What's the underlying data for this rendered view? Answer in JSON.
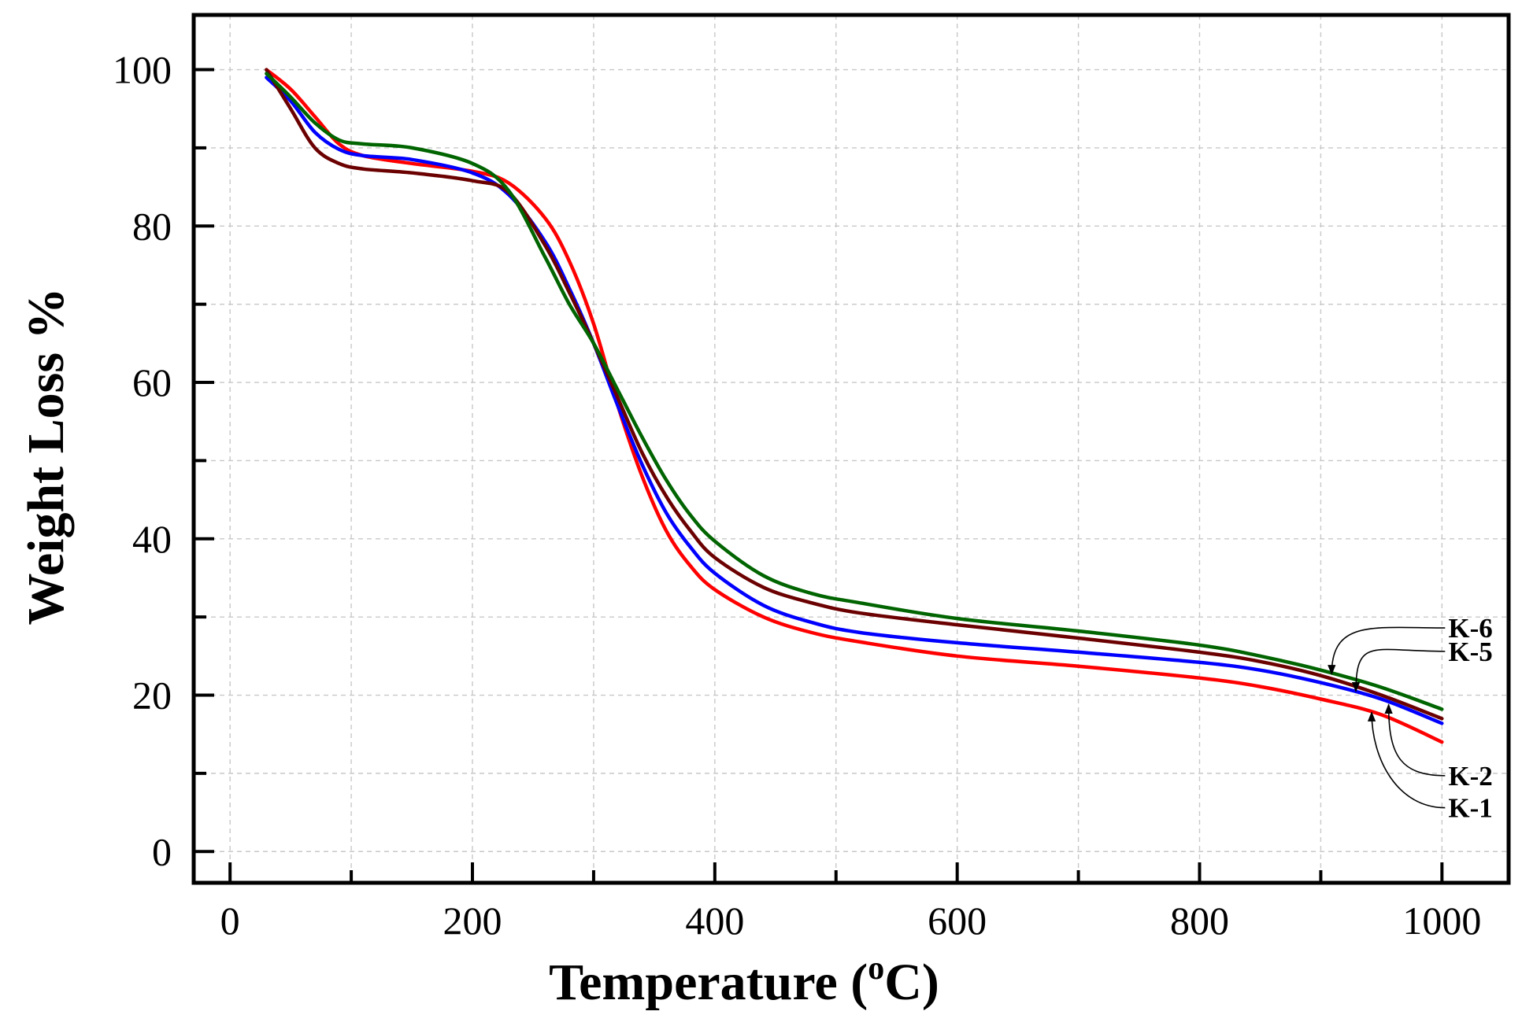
{
  "chart_data": {
    "type": "line",
    "title": "",
    "xlabel": "Temperature (",
    "xlabel_sup": "o",
    "xlabel_end": "C)",
    "ylabel": "Weight Loss %",
    "xlim": [
      -30,
      1055
    ],
    "ylim": [
      -4,
      107
    ],
    "xticks": [
      0,
      200,
      400,
      600,
      800,
      1000
    ],
    "xtick_labels": [
      "0",
      "200",
      "400",
      "600",
      "800",
      "1000"
    ],
    "xminor": [
      100,
      300,
      500,
      700,
      900
    ],
    "yticks": [
      0,
      20,
      40,
      60,
      80,
      100
    ],
    "ytick_labels": [
      "0",
      "20",
      "40",
      "60",
      "80",
      "100"
    ],
    "yminor": [
      10,
      30,
      50,
      70,
      90
    ],
    "grid": true,
    "series": [
      {
        "name": "K-1",
        "color": "#ff0000",
        "x": [
          30,
          50,
          70,
          90,
          110,
          150,
          200,
          230,
          260,
          280,
          300,
          320,
          340,
          360,
          380,
          400,
          440,
          480,
          520,
          600,
          700,
          800,
          850,
          900,
          950,
          1000
        ],
        "y": [
          100,
          97.5,
          94,
          90.5,
          89,
          88,
          87,
          85.5,
          81,
          75.5,
          67.5,
          57,
          48,
          41,
          36.5,
          33.5,
          30,
          28,
          26.8,
          25,
          23.7,
          22.2,
          21.1,
          19.5,
          17.5,
          14
        ]
      },
      {
        "name": "K-2",
        "color": "#0000ff",
        "x": [
          30,
          50,
          70,
          90,
          110,
          150,
          200,
          230,
          260,
          280,
          300,
          320,
          340,
          360,
          380,
          400,
          440,
          480,
          520,
          600,
          700,
          800,
          850,
          900,
          950,
          1000
        ],
        "y": [
          99,
          96,
          92,
          89.8,
          89,
          88.5,
          86.8,
          84,
          78,
          72,
          65,
          57,
          49.5,
          43.3,
          38.9,
          35.6,
          31.5,
          29.3,
          28,
          26.7,
          25.5,
          24.2,
          23.2,
          21.6,
          19.5,
          16.4
        ]
      },
      {
        "name": "K-5",
        "color": "#6b0000",
        "x": [
          30,
          50,
          70,
          90,
          110,
          150,
          200,
          230,
          260,
          280,
          300,
          320,
          340,
          360,
          380,
          400,
          440,
          480,
          520,
          600,
          700,
          800,
          850,
          900,
          950,
          1000
        ],
        "y": [
          100,
          95,
          90,
          88,
          87.3,
          86.8,
          85.8,
          84.3,
          77.5,
          71.5,
          65,
          58,
          51,
          45.4,
          41,
          37.6,
          33.8,
          31.8,
          30.5,
          29,
          27.3,
          25.5,
          24.3,
          22.5,
          20,
          17
        ]
      },
      {
        "name": "K-6",
        "color": "#006400",
        "x": [
          30,
          50,
          70,
          90,
          110,
          150,
          200,
          230,
          260,
          280,
          300,
          320,
          340,
          360,
          380,
          400,
          440,
          480,
          520,
          600,
          700,
          800,
          850,
          900,
          950,
          1000
        ],
        "y": [
          99.5,
          96.5,
          93.2,
          91,
          90.5,
          90,
          88,
          84.5,
          76,
          70,
          65,
          59,
          53,
          47.5,
          43,
          39.7,
          35.3,
          33,
          31.8,
          29.8,
          28.2,
          26.4,
          25,
          23.2,
          21,
          18.2
        ]
      }
    ],
    "annotations": [
      {
        "text": "K-6",
        "series": "K-6",
        "label_at": [
          1000,
          28.6
        ],
        "arrow_to": [
          909,
          22.7
        ],
        "side": "above"
      },
      {
        "text": "K-5",
        "series": "K-5",
        "label_at": [
          1000,
          25.6
        ],
        "arrow_to": [
          929,
          20.5
        ],
        "side": "above"
      },
      {
        "text": "K-2",
        "series": "K-2",
        "label_at": [
          1000,
          9.7
        ],
        "arrow_to": [
          956,
          18.8
        ],
        "side": "below"
      },
      {
        "text": "K-1",
        "series": "K-1",
        "label_at": [
          1000,
          5.6
        ],
        "arrow_to": [
          942,
          17.8
        ],
        "side": "below"
      }
    ]
  }
}
